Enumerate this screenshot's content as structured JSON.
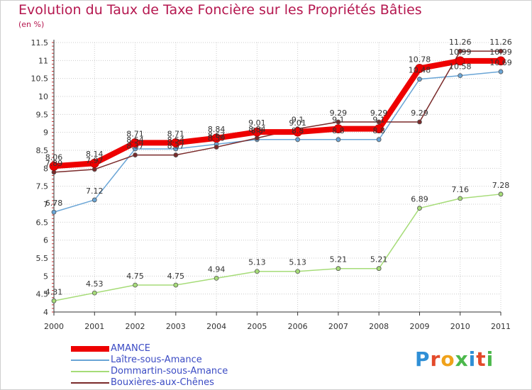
{
  "title": "Evolution du Taux de Taxe Foncière sur les Propriétés Bâties",
  "subtitle": "(en %)",
  "logo": "Proxiti",
  "colors": {
    "title": "#b5174f",
    "grid": "#cccccc",
    "axis": "#333333"
  },
  "chart_data": {
    "type": "line",
    "title": "Evolution du Taux de Taxe Foncière sur les Propriétés Bâties",
    "ylabel": "(en %)",
    "xlabel": "",
    "ylim": [
      4,
      11.5
    ],
    "yticks": [
      4,
      4.5,
      5,
      5.5,
      6,
      6.5,
      7,
      7.5,
      8,
      8.5,
      9,
      9.5,
      10,
      10.5,
      11,
      11.5
    ],
    "categories": [
      "2000",
      "2001",
      "2002",
      "2003",
      "2004",
      "2005",
      "2006",
      "2007",
      "2008",
      "2009",
      "2010",
      "2011"
    ],
    "legend_position": "bottom-left",
    "series": [
      {
        "name": "AMANCE",
        "color": "#ee0000",
        "width": 8,
        "values": [
          8.06,
          8.14,
          8.71,
          8.71,
          8.84,
          9.01,
          9.01,
          9.1,
          9.1,
          10.78,
          10.99,
          10.99
        ],
        "labels": [
          "8.06",
          "8.14",
          "8.71",
          "8.71",
          "8.84",
          "9.01",
          "9.01",
          "9.1",
          "9.1",
          "10.78",
          "10.99",
          "10.99"
        ]
      },
      {
        "name": "Laître-sous-Amance",
        "color": "#6aa5d6",
        "width": 1.5,
        "values": [
          6.78,
          7.12,
          8.54,
          8.54,
          8.67,
          8.8,
          8.8,
          8.8,
          8.8,
          10.48,
          10.58,
          10.69
        ],
        "labels": [
          "6.78",
          "7.12",
          "8.54",
          "8.54",
          "8.67",
          "8.8",
          "8.8",
          "8.8",
          "8.8",
          "10.48",
          "10.58",
          "10.69"
        ]
      },
      {
        "name": "Dommartin-sous-Amance",
        "color": "#a6dc78",
        "width": 1.5,
        "values": [
          4.31,
          4.53,
          4.75,
          4.75,
          4.94,
          5.13,
          5.13,
          5.21,
          5.21,
          6.89,
          7.16,
          7.28
        ],
        "labels": [
          "4.31",
          "4.53",
          "4.75",
          "4.75",
          "4.94",
          "5.13",
          "5.13",
          "5.21",
          "5.21",
          "6.89",
          "7.16",
          "7.28"
        ]
      },
      {
        "name": "Bouxières-aux-Chênes",
        "color": "#7a2a2a",
        "width": 1.5,
        "values": [
          7.89,
          7.97,
          8.37,
          8.37,
          8.59,
          8.84,
          9.1,
          9.29,
          9.29,
          9.29,
          11.26,
          11.26
        ],
        "labels": [
          "7.89",
          "7.97",
          "8.37",
          "8.37",
          "8.59",
          "8.84",
          "9.1",
          "9.29",
          "9.29",
          "9.29",
          "11.26",
          "11.26"
        ]
      }
    ]
  }
}
